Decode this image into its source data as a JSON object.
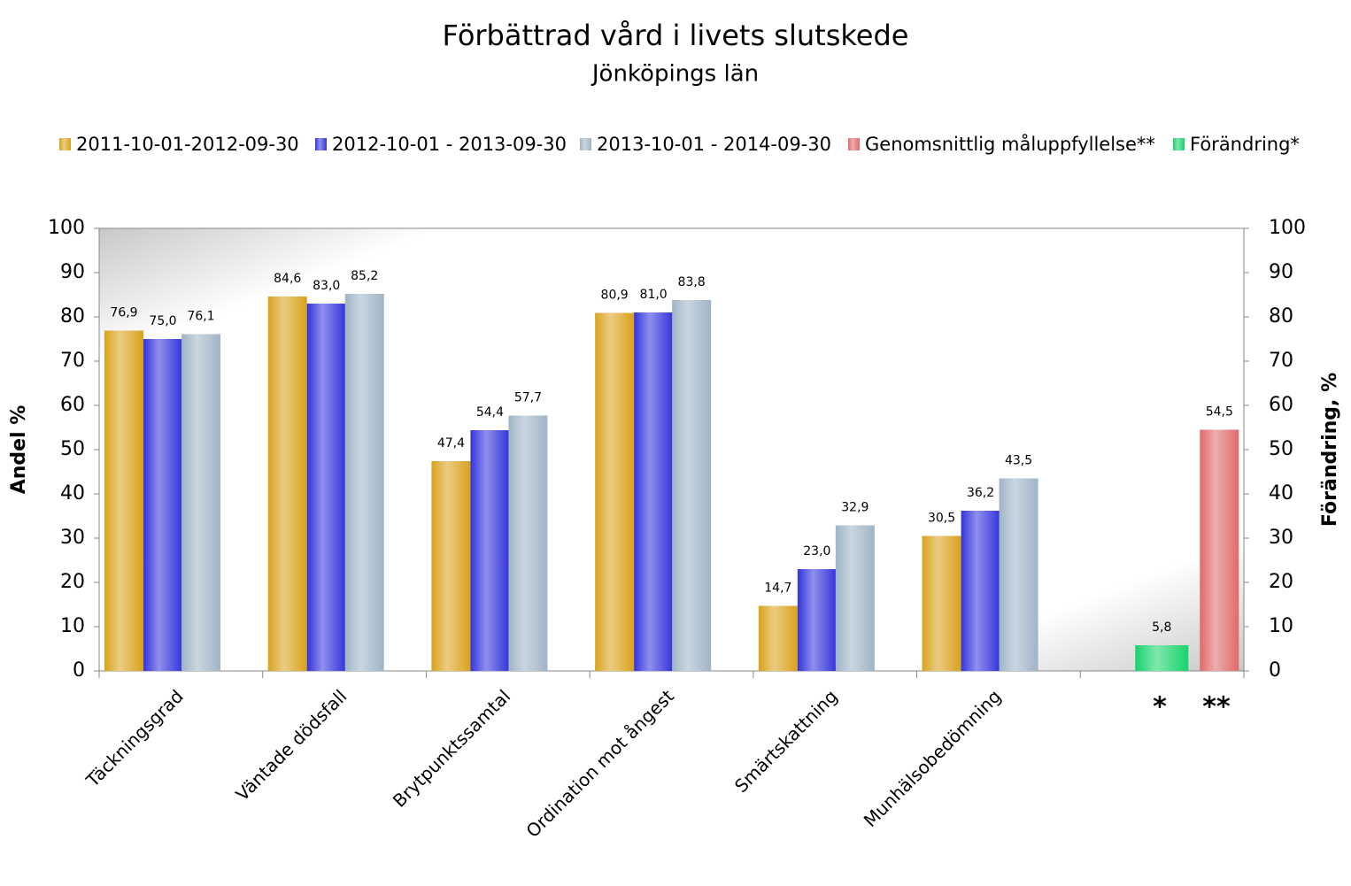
{
  "chart_data": {
    "type": "bar",
    "title": "Förbättrad vård i livets slutskede",
    "subtitle": "Jönköpings län",
    "ylabel": "Andel %",
    "y2label": "Förändring, %",
    "categories": [
      "Täckningsgrad",
      "Väntade dödsfall",
      "Brytpunktssamtal",
      "Ordination mot ångest",
      "Smärtskattning",
      "Munhälsobedömning",
      null
    ],
    "series": [
      {
        "name": "2011-10-01-2012-09-30",
        "color": "#d9a21b",
        "values": [
          76.9,
          84.6,
          47.4,
          80.9,
          14.7,
          30.5,
          null
        ],
        "value_labels": [
          "76,9",
          "84,6",
          "47,4",
          "80,9",
          "14,7",
          "30,5",
          null
        ]
      },
      {
        "name": "2012-10-01 - 2013-09-30",
        "color": "#3434dc",
        "values": [
          75.0,
          83.0,
          54.4,
          81.0,
          23.0,
          36.2,
          null
        ],
        "value_labels": [
          "75,0",
          "83,0",
          "54,4",
          "81,0",
          "23,0",
          "36,2",
          null
        ]
      },
      {
        "name": "2013-10-01 - 2014-09-30",
        "color": "#9fb4c6",
        "values": [
          76.1,
          85.2,
          57.7,
          83.8,
          32.9,
          43.5,
          null
        ],
        "value_labels": [
          "76,1",
          "85,2",
          "57,7",
          "83,8",
          "32,9",
          "43,5",
          null
        ]
      },
      {
        "name": "Genomsnittlig måluppfyllelse**",
        "color": "#e06a6a",
        "values": [
          null,
          null,
          null,
          null,
          null,
          null,
          54.5
        ],
        "value_labels": [
          null,
          null,
          null,
          null,
          null,
          null,
          "54,5"
        ]
      },
      {
        "name": "Förändring*",
        "color": "#17d36a",
        "axis": "y2",
        "values": [
          null,
          null,
          null,
          null,
          null,
          null,
          5.8
        ],
        "value_labels": [
          null,
          null,
          null,
          null,
          null,
          null,
          "5,8"
        ]
      }
    ],
    "annotations": [
      "*",
      "**"
    ],
    "ylim": [
      0,
      100
    ],
    "yticks": [
      0,
      10,
      20,
      30,
      40,
      50,
      60,
      70,
      80,
      90,
      100
    ],
    "y2lim": [
      0,
      100
    ],
    "y2ticks": [
      0,
      10,
      20,
      30,
      40,
      50,
      60,
      70,
      80,
      90,
      100
    ],
    "grid": false
  }
}
